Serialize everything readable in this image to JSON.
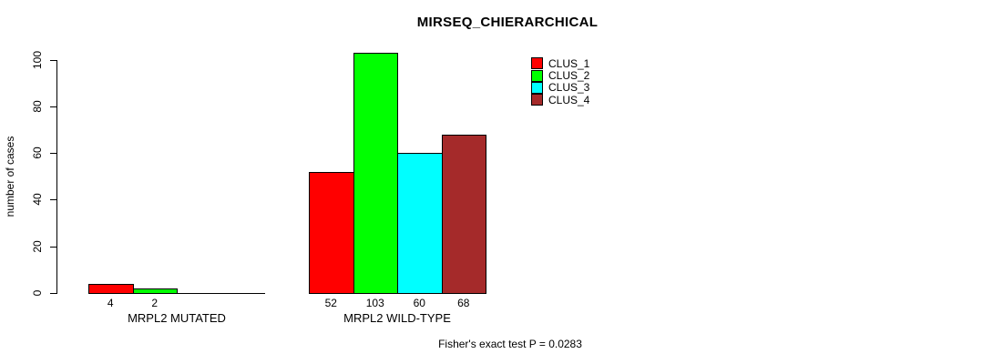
{
  "chart_data": {
    "type": "bar",
    "title": "MIRSEQ_CHIERARCHICAL",
    "ylabel": "number of cases",
    "xlabel": "",
    "ylim": [
      0,
      100
    ],
    "yticks": [
      0,
      20,
      40,
      60,
      80,
      100
    ],
    "grid": false,
    "legend_position": "top-right",
    "categories": [
      "MRPL2 MUTATED",
      "MRPL2 WILD-TYPE"
    ],
    "series": [
      {
        "name": "CLUS_1",
        "color": "#FF0000",
        "values": [
          4,
          52
        ]
      },
      {
        "name": "CLUS_2",
        "color": "#00FF00",
        "values": [
          2,
          103
        ]
      },
      {
        "name": "CLUS_3",
        "color": "#00FFFF",
        "values": [
          0,
          60
        ]
      },
      {
        "name": "CLUS_4",
        "color": "#A52A2A",
        "values": [
          0,
          68
        ]
      }
    ],
    "groups": [
      {
        "label": "MRPL2 MUTATED",
        "values": [
          4,
          2,
          0,
          0
        ],
        "visible_value_labels": [
          "4",
          "2"
        ]
      },
      {
        "label": "MRPL2 WILD-TYPE",
        "values": [
          52,
          103,
          60,
          68
        ],
        "visible_value_labels": [
          "52",
          "103",
          "60",
          "68"
        ]
      }
    ],
    "annotation": "Fisher's exact test P = 0.0283"
  }
}
